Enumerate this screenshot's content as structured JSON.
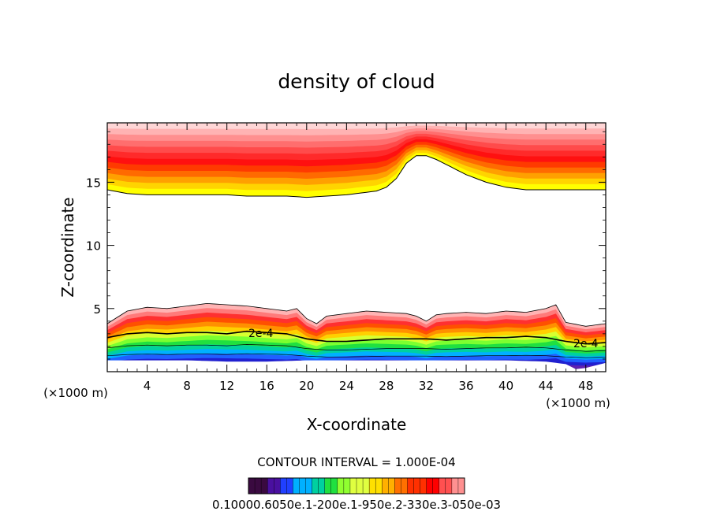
{
  "chart_data": {
    "type": "heatmap",
    "title": "density of cloud",
    "xlabel": "X-coordinate",
    "ylabel": "Z-coordinate",
    "x_unit_left": "(×1000 m)",
    "x_unit_right": "(×1000 m)",
    "xlim": [
      0,
      50
    ],
    "ylim": [
      0,
      19.7
    ],
    "x_ticks": [
      4,
      8,
      12,
      16,
      20,
      24,
      28,
      32,
      36,
      40,
      44,
      48
    ],
    "y_ticks": [
      5,
      10,
      15
    ],
    "contour_labels": [
      "2e-4",
      "2e-4"
    ],
    "contour_interval_text": "CONTOUR INTERVAL = 1.000E-04",
    "colorbar_labels_text": "0.10000.6050e.1-200e.1-950e.2-330e.3-050e-03",
    "upper_cloud_base": {
      "x": [
        0,
        2,
        4,
        6,
        8,
        10,
        12,
        14,
        16,
        18,
        20,
        22,
        24,
        26,
        27,
        28,
        29,
        30,
        31,
        32,
        33,
        34,
        36,
        38,
        40,
        42,
        44,
        46,
        48,
        50
      ],
      "z": [
        14.4,
        14.1,
        14.0,
        14.0,
        14.0,
        14.0,
        14.0,
        13.9,
        13.9,
        13.9,
        13.8,
        13.9,
        14.0,
        14.2,
        14.3,
        14.6,
        15.3,
        16.5,
        17.1,
        17.1,
        16.8,
        16.4,
        15.6,
        15.0,
        14.6,
        14.4,
        14.4,
        14.4,
        14.4,
        14.4
      ]
    },
    "lower_cloud_top": {
      "x": [
        0,
        2,
        4,
        6,
        8,
        10,
        12,
        14,
        16,
        18,
        19,
        20,
        21,
        22,
        24,
        26,
        28,
        30,
        31,
        32,
        33,
        34,
        36,
        38,
        40,
        42,
        44,
        45,
        46,
        48,
        50
      ],
      "z": [
        3.8,
        4.8,
        5.1,
        5.0,
        5.2,
        5.4,
        5.3,
        5.2,
        5.0,
        4.8,
        5.0,
        4.2,
        3.8,
        4.4,
        4.6,
        4.8,
        4.7,
        4.6,
        4.4,
        4.0,
        4.5,
        4.6,
        4.7,
        4.6,
        4.8,
        4.7,
        5.0,
        5.3,
        3.9,
        3.6,
        3.8
      ]
    },
    "contour_2e4": {
      "x": [
        0,
        2,
        4,
        6,
        8,
        10,
        12,
        14,
        16,
        18,
        20,
        22,
        24,
        26,
        28,
        30,
        32,
        34,
        36,
        38,
        40,
        42,
        44,
        46,
        48,
        50
      ],
      "z": [
        2.7,
        3.0,
        3.1,
        3.0,
        3.1,
        3.1,
        3.0,
        3.2,
        3.1,
        3.0,
        2.6,
        2.4,
        2.4,
        2.5,
        2.6,
        2.6,
        2.6,
        2.5,
        2.6,
        2.7,
        2.7,
        2.8,
        2.7,
        2.4,
        2.2,
        2.3
      ]
    },
    "cloud_bottom": {
      "x": [
        0,
        4,
        8,
        12,
        16,
        20,
        24,
        28,
        32,
        36,
        40,
        44,
        46,
        47,
        48,
        50
      ],
      "z": [
        0.9,
        0.9,
        0.9,
        0.8,
        0.8,
        0.9,
        0.9,
        0.9,
        0.9,
        0.9,
        0.9,
        0.8,
        0.6,
        0.2,
        0.3,
        0.7
      ]
    },
    "colors": {
      "upper_band": [
        "#ffff00",
        "#ffd400",
        "#ffa000",
        "#ff6a00",
        "#ff3a00",
        "#ff1010",
        "#ff2a2a",
        "#ff4b4b",
        "#ff6e6e",
        "#ff8f8f",
        "#ffb3b3",
        "#ffd6d6"
      ],
      "lower_band": [
        "#ffb3b3",
        "#ff7a7a",
        "#ff3030",
        "#ff5000",
        "#ff9000",
        "#ffd000",
        "#d8ff30",
        "#7cff30",
        "#20e040",
        "#00d0a0",
        "#00b0ff",
        "#2060ff",
        "#2020d0",
        "#6020b0",
        "#7030a0"
      ]
    }
  }
}
